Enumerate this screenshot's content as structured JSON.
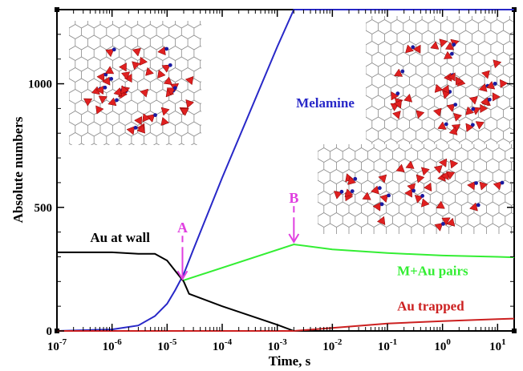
{
  "chart_data": {
    "type": "line",
    "xscale": "log",
    "xlabel": "Time, s",
    "ylabel": "Absolute numbers",
    "xlim": [
      1e-07,
      20
    ],
    "ylim": [
      0,
      1300
    ],
    "xticks": [
      {
        "value": 1e-07,
        "exp": "-7"
      },
      {
        "value": 1e-06,
        "exp": "-6"
      },
      {
        "value": 1e-05,
        "exp": "-5"
      },
      {
        "value": 0.0001,
        "exp": "-4"
      },
      {
        "value": 0.001,
        "exp": "-3"
      },
      {
        "value": 0.01,
        "exp": "-2"
      },
      {
        "value": 0.1,
        "exp": "-1"
      },
      {
        "value": 1,
        "exp": "0"
      },
      {
        "value": 10,
        "exp": "1"
      }
    ],
    "xtick_base": "10",
    "yticks": [
      {
        "value": 0,
        "label": "0"
      },
      {
        "value": 500,
        "label": "500"
      },
      {
        "value": 1000,
        "label": "1000"
      }
    ],
    "series": [
      {
        "name": "Melamine",
        "color": "#2828c8",
        "points": [
          [
            1e-07,
            0
          ],
          [
            1e-06,
            6
          ],
          [
            3e-06,
            22
          ],
          [
            6e-06,
            60
          ],
          [
            1e-05,
            110
          ],
          [
            1.4e-05,
            165
          ],
          [
            2e-05,
            230
          ],
          [
            3e-05,
            330
          ],
          [
            0.0001,
            620
          ],
          [
            0.001,
            1150
          ],
          [
            0.002,
            1300
          ],
          [
            20,
            1300
          ]
        ]
      },
      {
        "name": "Au at wall",
        "color": "#000000",
        "points": [
          [
            1e-07,
            318
          ],
          [
            1e-06,
            318
          ],
          [
            3e-06,
            312
          ],
          [
            6e-06,
            312
          ],
          [
            1e-05,
            285
          ],
          [
            1.5e-05,
            235
          ],
          [
            2e-05,
            200
          ],
          [
            2.5e-05,
            150
          ],
          [
            0.0001,
            100
          ],
          [
            0.001,
            25
          ],
          [
            0.002,
            0
          ]
        ]
      },
      {
        "name": "M+Au pairs",
        "color": "#33ee33",
        "points": [
          [
            2e-05,
            205
          ],
          [
            0.002,
            350
          ],
          [
            0.01,
            330
          ],
          [
            0.1,
            315
          ],
          [
            1,
            305
          ],
          [
            10,
            300
          ],
          [
            20,
            298
          ]
        ]
      },
      {
        "name": "Au trapped",
        "color": "#cc2020",
        "points": [
          [
            1e-07,
            0
          ],
          [
            0.002,
            0
          ],
          [
            0.01,
            12
          ],
          [
            0.1,
            30
          ],
          [
            1,
            40
          ],
          [
            10,
            48
          ],
          [
            20,
            50
          ]
        ]
      }
    ],
    "annotations": [
      {
        "text": "Melamine",
        "x": 0.0022,
        "y": 905,
        "color": "#2828c8"
      },
      {
        "text": "Au at wall",
        "x": 4e-07,
        "y": 360,
        "color": "#000000"
      },
      {
        "text": "M+Au pairs",
        "x": 0.15,
        "y": 225,
        "color": "#33ee33"
      },
      {
        "text": "Au trapped",
        "x": 0.15,
        "y": 82,
        "color": "#cc2020"
      }
    ],
    "markers": [
      {
        "label": "A",
        "x": 1.9e-05,
        "y_top": 385,
        "y_bottom": 210
      },
      {
        "label": "B",
        "x": 0.002,
        "y_top": 505,
        "y_bottom": 360
      }
    ],
    "insets": [
      {
        "name": "inset-cluster-top-left"
      },
      {
        "name": "inset-cluster-top-right"
      },
      {
        "name": "inset-cluster-bottom-right"
      }
    ]
  }
}
